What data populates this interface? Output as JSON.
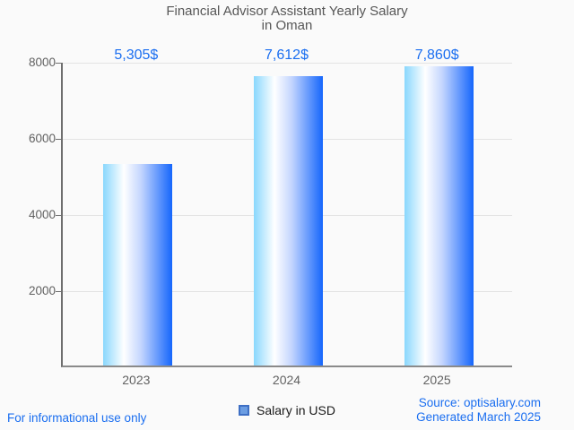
{
  "page": {
    "background": "#fafafa"
  },
  "title": {
    "line1": "Financial Advisor Assistant Yearly Salary",
    "line2": "in Oman"
  },
  "chart_data": {
    "type": "bar",
    "title": "Financial Advisor Assistant Yearly Salary in Oman",
    "categories": [
      "2023",
      "2024",
      "2025"
    ],
    "series": [
      {
        "name": "Salary in USD",
        "values": [
          5305,
          7612,
          7860
        ]
      }
    ],
    "value_labels": [
      "5,305$",
      "7,612$",
      "7,860$"
    ],
    "xlabel": "",
    "ylabel": "",
    "ylim": [
      0,
      8000
    ],
    "yticks": [
      2000,
      4000,
      6000,
      8000
    ],
    "grid": true,
    "legend_position": "bottom",
    "bar_gradient": [
      "#89d7fd",
      "#ffffff",
      "#1566fc"
    ]
  },
  "legend": {
    "label": "Salary in USD"
  },
  "footer": {
    "disclaimer": "For informational use only",
    "source": "Source: optisalary.com",
    "generated": "Generated March 2025"
  },
  "colors": {
    "accent_blue": "#1a6ef0",
    "title_text": "#575757",
    "axis_text": "#616161",
    "gridline": "#e3e3e3",
    "legend_marker_fill": "#6b9de2",
    "legend_marker_border": "#3e6fc4"
  }
}
